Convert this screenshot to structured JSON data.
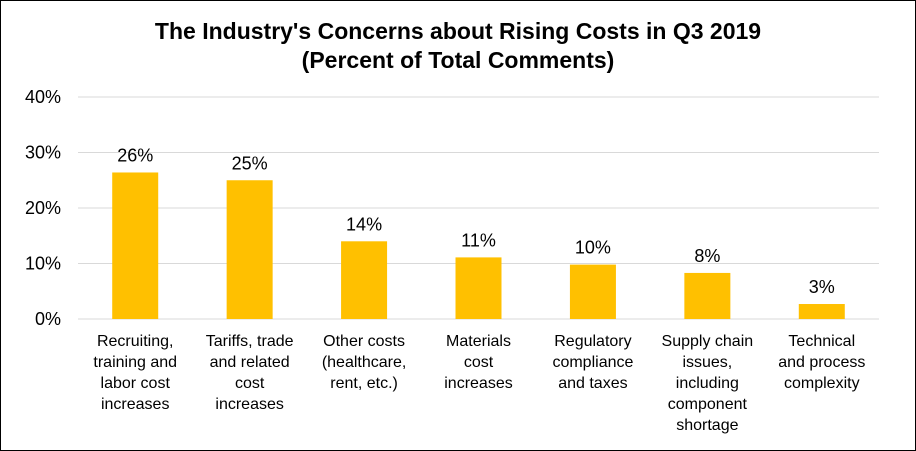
{
  "chart_data": {
    "type": "bar",
    "title_lines": [
      "The Industry's Concerns about Rising Costs in Q3 2019",
      "(Percent of Total Comments)"
    ],
    "categories": [
      [
        "Recruiting,",
        "training and",
        "labor cost",
        "increases"
      ],
      [
        "Tariffs, trade",
        "and related",
        "cost",
        "increases"
      ],
      [
        "Other costs",
        "(healthcare,",
        "rent, etc.)"
      ],
      [
        "Materials",
        "cost",
        "increases"
      ],
      [
        "Regulatory",
        "compliance",
        "and taxes"
      ],
      [
        "Supply chain",
        "issues,",
        "including",
        "component",
        "shortage"
      ],
      [
        "Technical",
        "and process",
        "complexity"
      ]
    ],
    "values": [
      26.4,
      25.0,
      14.0,
      11.1,
      9.8,
      8.3,
      2.7
    ],
    "data_labels": [
      "26%",
      "25%",
      "14%",
      "11%",
      "10%",
      "8%",
      "3%"
    ],
    "ylim": [
      0,
      40
    ],
    "yticks": [
      0,
      10,
      20,
      30,
      40
    ],
    "ytick_labels": [
      "0%",
      "10%",
      "20%",
      "30%",
      "40%"
    ],
    "grid": true,
    "bar_color": "#FFC000",
    "grid_color": "#D9D9D9"
  }
}
